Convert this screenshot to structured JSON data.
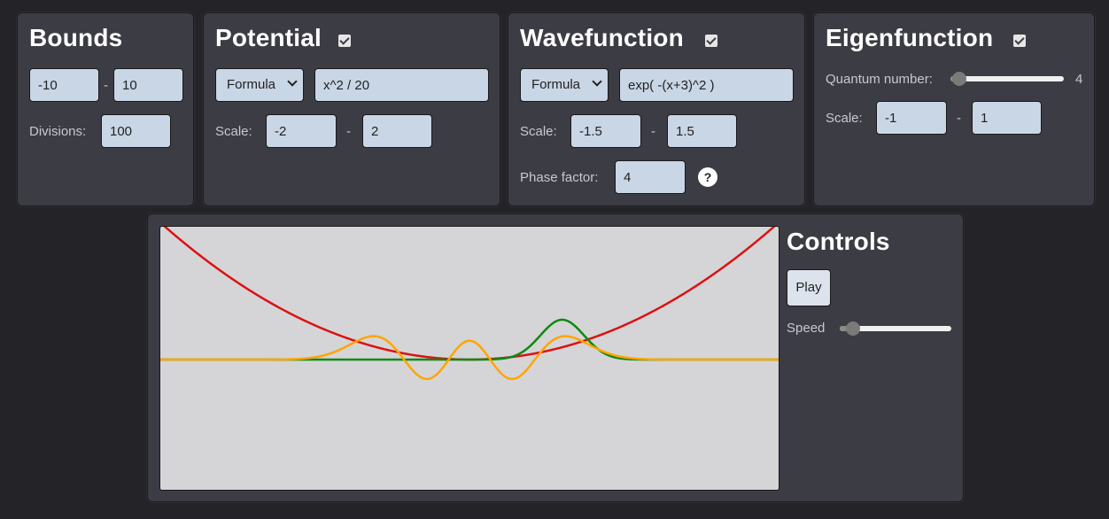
{
  "bounds": {
    "title": "Bounds",
    "min": "-10",
    "max": "10",
    "divisions_label": "Divisions:",
    "divisions": "100"
  },
  "potential": {
    "title": "Potential",
    "enabled": true,
    "mode": "Formula",
    "formula": "x^2 / 20",
    "scale_label": "Scale:",
    "scale_min": "-2",
    "scale_max": "2"
  },
  "wavefunction": {
    "title": "Wavefunction",
    "enabled": true,
    "mode": "Formula",
    "formula": "exp( -(x+3)^2 )",
    "scale_label": "Scale:",
    "scale_min": "-1.5",
    "scale_max": "1.5",
    "phase_label": "Phase factor:",
    "phase": "4",
    "help": "?"
  },
  "eigenfunction": {
    "title": "Eigenfunction",
    "enabled": true,
    "quantum_label": "Quantum number:",
    "quantum_value": "4",
    "quantum_fraction": 0.08,
    "scale_label": "Scale:",
    "scale_min": "-1",
    "scale_max": "1"
  },
  "controls": {
    "title": "Controls",
    "play_label": "Play",
    "speed_label": "Speed",
    "speed_fraction": 0.12
  },
  "sep": "-",
  "colors": {
    "potential": "#dd1111",
    "wavefunction": "#118811",
    "eigenfunction": "#ffa500",
    "plot_bg": "#d5d5d8"
  }
}
